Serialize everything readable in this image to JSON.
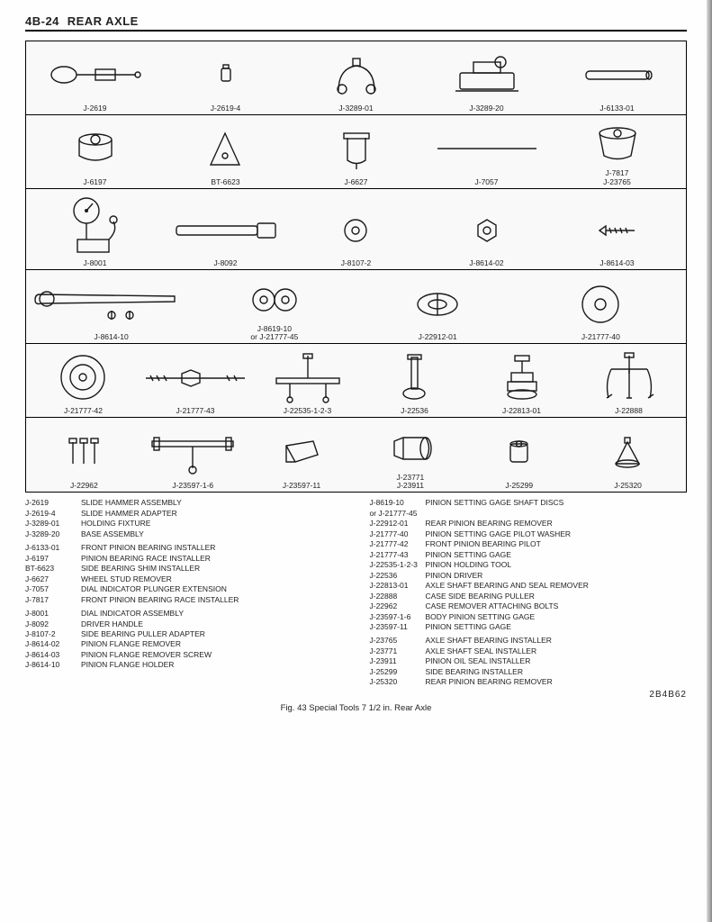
{
  "header": {
    "page_code": "4B-24",
    "title": "REAR AXLE"
  },
  "footer_code": "2B4B62",
  "caption": "Fig. 43 Special Tools 7 1/2 in. Rear Axle",
  "rows": [
    {
      "items": [
        {
          "id": "J-2619",
          "icon": "slide-hammer"
        },
        {
          "id": "J-2619-4",
          "icon": "adapter-small"
        },
        {
          "id": "J-3289-01",
          "icon": "fixture-u"
        },
        {
          "id": "J-3289-20",
          "icon": "base-assembly"
        },
        {
          "id": "J-6133-01",
          "icon": "tube"
        }
      ]
    },
    {
      "items": [
        {
          "id": "J-6197",
          "icon": "disc-socket"
        },
        {
          "id": "BT-6623",
          "icon": "shim-plate"
        },
        {
          "id": "J-6627",
          "icon": "u-clamp"
        },
        {
          "id": "J-7057",
          "icon": "rod-long"
        },
        {
          "id": "J-7817\nJ-23765",
          "icon": "cup-installer"
        }
      ]
    },
    {
      "items": [
        {
          "id": "J-8001",
          "icon": "dial-indicator"
        },
        {
          "id": "J-8092",
          "icon": "handle"
        },
        {
          "id": "J-8107-2",
          "icon": "button-adapter"
        },
        {
          "id": "J-8614-02",
          "icon": "hex-flange"
        },
        {
          "id": "J-8614-03",
          "icon": "screw"
        }
      ]
    },
    {
      "items": [
        {
          "id": "J-8614-10",
          "icon": "wrench-bolts"
        },
        {
          "id": "J-8619-10\nor J-21777-45",
          "icon": "discs-pair"
        },
        {
          "id": "J-22912-01",
          "icon": "split-ring"
        },
        {
          "id": "J-21777-40",
          "icon": "washer-large"
        }
      ]
    },
    {
      "items": [
        {
          "id": "J-21777-42",
          "icon": "big-disc"
        },
        {
          "id": "J-21777-43",
          "icon": "rod-nut"
        },
        {
          "id": "J-22535-1-2-3",
          "icon": "holding-tool"
        },
        {
          "id": "J-22536",
          "icon": "driver-t"
        },
        {
          "id": "J-22813-01",
          "icon": "remover-stepped"
        },
        {
          "id": "J-22888",
          "icon": "puller-3jaw"
        }
      ]
    },
    {
      "items": [
        {
          "id": "J-22962",
          "icon": "bolts-set"
        },
        {
          "id": "J-23597-1-6",
          "icon": "t-bar-tool"
        },
        {
          "id": "J-23597-11",
          "icon": "block-angle"
        },
        {
          "id": "J-23771\nJ-23911",
          "icon": "seal-installer"
        },
        {
          "id": "J-25299",
          "icon": "socket-short"
        },
        {
          "id": "J-25320",
          "icon": "cone-remover"
        }
      ]
    }
  ],
  "legend_left": [
    {
      "code": "J-2619",
      "desc": "SLIDE HAMMER ASSEMBLY"
    },
    {
      "code": "J-2619-4",
      "desc": "SLIDE HAMMER ADAPTER"
    },
    {
      "code": "J-3289-01",
      "desc": "HOLDING FIXTURE"
    },
    {
      "code": "J-3289-20",
      "desc": "BASE ASSEMBLY"
    },
    {
      "spacer": true
    },
    {
      "code": "J-6133-01",
      "desc": "FRONT PINION BEARING INSTALLER"
    },
    {
      "code": "J-6197",
      "desc": "PINION BEARING RACE INSTALLER"
    },
    {
      "code": "BT-6623",
      "desc": "SIDE BEARING SHIM INSTALLER"
    },
    {
      "code": "J-6627",
      "desc": "WHEEL STUD REMOVER"
    },
    {
      "code": "J-7057",
      "desc": "DIAL INDICATOR PLUNGER EXTENSION"
    },
    {
      "code": "J-7817",
      "desc": "FRONT PINION BEARING RACE INSTALLER"
    },
    {
      "spacer": true
    },
    {
      "code": "J-8001",
      "desc": "DIAL INDICATOR ASSEMBLY"
    },
    {
      "code": "J-8092",
      "desc": "DRIVER HANDLE"
    },
    {
      "code": "J-8107-2",
      "desc": "SIDE BEARING PULLER ADAPTER"
    },
    {
      "code": "J-8614-02",
      "desc": "PINION FLANGE REMOVER"
    },
    {
      "code": "J-8614-03",
      "desc": "PINION FLANGE REMOVER SCREW"
    },
    {
      "code": "J-8614-10",
      "desc": "PINION FLANGE HOLDER"
    }
  ],
  "legend_right": [
    {
      "code": "J-8619-10",
      "desc": "PINION SETTING GAGE SHAFT DISCS"
    },
    {
      "code": "  or J-21777-45",
      "desc": ""
    },
    {
      "code": "J-22912-01",
      "desc": "REAR PINION BEARING REMOVER"
    },
    {
      "code": "J-21777-40",
      "desc": "PINION SETTING GAGE PILOT WASHER"
    },
    {
      "code": "J-21777-42",
      "desc": "FRONT PINION BEARING PILOT"
    },
    {
      "code": "J-21777-43",
      "desc": "PINION SETTING GAGE"
    },
    {
      "code": "J-22535-1-2-3",
      "desc": "PINION HOLDING TOOL"
    },
    {
      "code": "J-22536",
      "desc": "PINION DRIVER"
    },
    {
      "code": "J-22813-01",
      "desc": "AXLE SHAFT BEARING AND SEAL REMOVER"
    },
    {
      "code": "J-22888",
      "desc": "CASE SIDE BEARING PULLER"
    },
    {
      "code": "J-22962",
      "desc": "CASE REMOVER ATTACHING BOLTS"
    },
    {
      "code": "J-23597-1-6",
      "desc": "BODY PINION SETTING GAGE"
    },
    {
      "code": "J-23597-11",
      "desc": "PINION SETTING GAGE"
    },
    {
      "spacer": true
    },
    {
      "code": "J-23765",
      "desc": "AXLE SHAFT BEARING INSTALLER"
    },
    {
      "code": "J-23771",
      "desc": "AXLE SHAFT SEAL INSTALLER"
    },
    {
      "code": "J-23911",
      "desc": "PINION OIL SEAL INSTALLER"
    },
    {
      "code": "J-25299",
      "desc": "SIDE BEARING INSTALLER"
    },
    {
      "code": "J-25320",
      "desc": "REAR PINION BEARING REMOVER"
    }
  ],
  "colors": {
    "stroke": "#1a1a1a",
    "fill": "#fdfdfd",
    "bg": "#f9f9f9"
  }
}
